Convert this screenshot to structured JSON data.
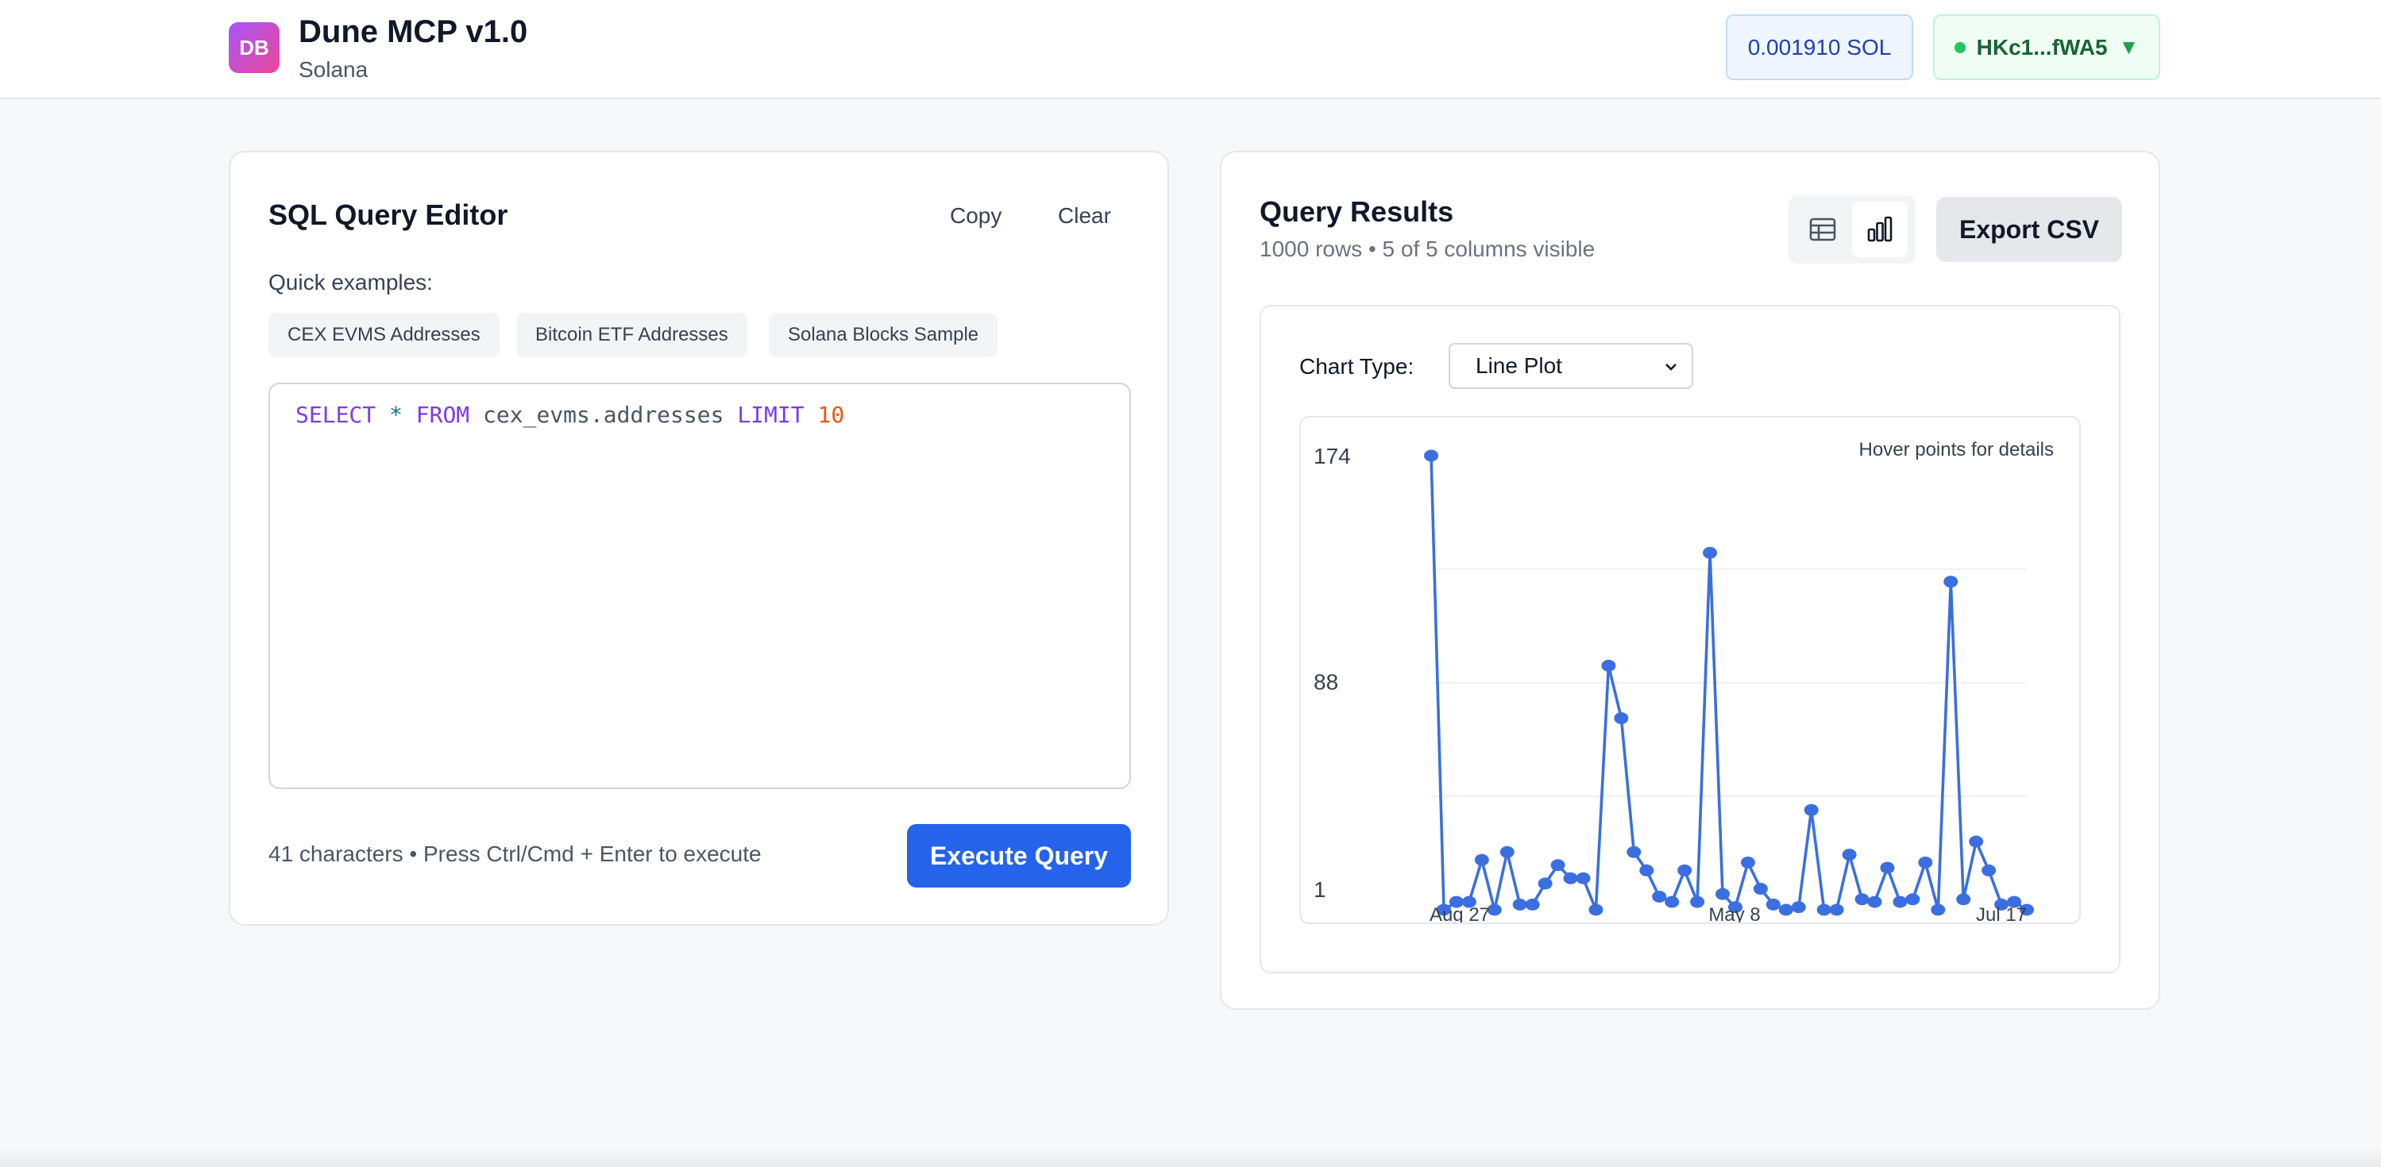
{
  "header": {
    "logo_text": "DB",
    "title": "Dune MCP v1.0",
    "subtitle": "Solana",
    "balance": "0.001910 SOL",
    "wallet": "HKc1...fWA5",
    "wallet_caret": "▼",
    "brand_gradient": [
      "#a855f7",
      "#ec4899"
    ]
  },
  "editor": {
    "title": "SQL Query Editor",
    "copy_label": "Copy",
    "clear_label": "Clear",
    "quick_label": "Quick examples:",
    "examples": [
      "CEX EVMS Addresses",
      "Bitcoin ETF Addresses",
      "Solana Blocks Sample"
    ],
    "query_tokens": {
      "select": "SELECT",
      "star": "*",
      "from": "FROM",
      "table": "cex_evms.addresses",
      "limit": "LIMIT",
      "limit_value": "10"
    },
    "hint": "41 characters • Press Ctrl/Cmd + Enter to execute",
    "execute_label": "Execute Query",
    "accent": "#2563eb"
  },
  "results": {
    "title": "Query Results",
    "subtitle": "1000 rows • 5 of 5 columns visible",
    "view_icons": [
      "table-icon",
      "bar-chart-icon"
    ],
    "export_label": "Export CSV",
    "chart_type_label": "Chart Type:",
    "chart_type_value": "Line Plot",
    "hover_hint": "Hover points for details"
  },
  "chart_data": {
    "type": "line",
    "y_ticks": [
      "174",
      "88",
      "1"
    ],
    "x_ticks": [
      "Aug 27",
      "May 8",
      "Jul 17"
    ],
    "ylim": [
      1,
      174
    ],
    "grid": true,
    "color": "#3b6fe0",
    "values": [
      174,
      1,
      4,
      4,
      20,
      1,
      23,
      3,
      3,
      11,
      18,
      13,
      13,
      1,
      94,
      74,
      23,
      16,
      6,
      4,
      16,
      4,
      137,
      7,
      2,
      19,
      9,
      3,
      1,
      2,
      39,
      1,
      1,
      22,
      5,
      4,
      17,
      4,
      5,
      19,
      1,
      126,
      5,
      27,
      16,
      3,
      4,
      1
    ]
  }
}
